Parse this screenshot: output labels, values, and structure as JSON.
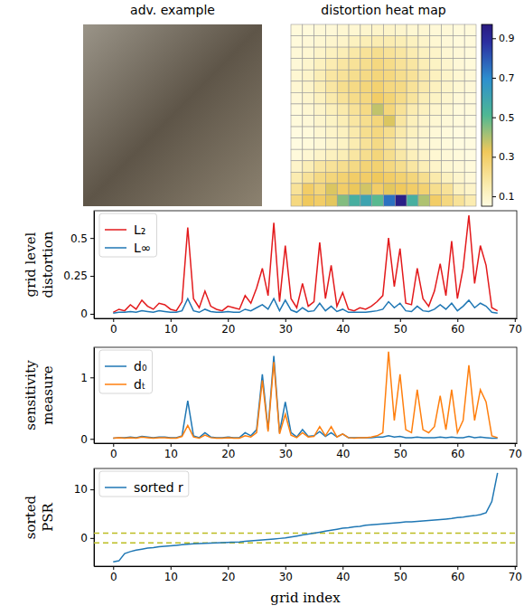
{
  "chart_data": [
    {
      "type": "image",
      "title": "adv. example"
    },
    {
      "type": "heatmap",
      "title": "distortion heat map",
      "values": [
        [
          0.06,
          0.06,
          0.07,
          0.07,
          0.08,
          0.08,
          0.09,
          0.1,
          0.1,
          0.09,
          0.08,
          0.08,
          0.07,
          0.07,
          0.06,
          0.06
        ],
        [
          0.06,
          0.07,
          0.08,
          0.09,
          0.1,
          0.12,
          0.14,
          0.15,
          0.15,
          0.14,
          0.12,
          0.1,
          0.08,
          0.07,
          0.06,
          0.06
        ],
        [
          0.07,
          0.08,
          0.1,
          0.12,
          0.14,
          0.17,
          0.2,
          0.22,
          0.2,
          0.18,
          0.15,
          0.12,
          0.1,
          0.08,
          0.07,
          0.06
        ],
        [
          0.07,
          0.09,
          0.12,
          0.15,
          0.18,
          0.2,
          0.22,
          0.25,
          0.23,
          0.2,
          0.18,
          0.14,
          0.11,
          0.09,
          0.07,
          0.06
        ],
        [
          0.08,
          0.1,
          0.14,
          0.18,
          0.2,
          0.22,
          0.24,
          0.26,
          0.25,
          0.22,
          0.2,
          0.16,
          0.12,
          0.1,
          0.08,
          0.07
        ],
        [
          0.08,
          0.1,
          0.14,
          0.18,
          0.22,
          0.24,
          0.26,
          0.28,
          0.25,
          0.24,
          0.2,
          0.16,
          0.12,
          0.1,
          0.08,
          0.07
        ],
        [
          0.07,
          0.09,
          0.12,
          0.16,
          0.2,
          0.23,
          0.25,
          0.3,
          0.27,
          0.23,
          0.19,
          0.14,
          0.11,
          0.09,
          0.07,
          0.06
        ],
        [
          0.06,
          0.08,
          0.1,
          0.13,
          0.16,
          0.2,
          0.24,
          0.38,
          0.26,
          0.2,
          0.15,
          0.12,
          0.09,
          0.08,
          0.06,
          0.06
        ],
        [
          0.06,
          0.07,
          0.09,
          0.11,
          0.14,
          0.18,
          0.22,
          0.26,
          0.35,
          0.18,
          0.13,
          0.1,
          0.08,
          0.07,
          0.06,
          0.05
        ],
        [
          0.05,
          0.06,
          0.08,
          0.1,
          0.12,
          0.16,
          0.22,
          0.25,
          0.22,
          0.16,
          0.12,
          0.09,
          0.07,
          0.06,
          0.05,
          0.05
        ],
        [
          0.05,
          0.06,
          0.07,
          0.09,
          0.11,
          0.15,
          0.2,
          0.24,
          0.2,
          0.14,
          0.1,
          0.08,
          0.07,
          0.06,
          0.05,
          0.05
        ],
        [
          0.06,
          0.08,
          0.1,
          0.12,
          0.14,
          0.18,
          0.22,
          0.26,
          0.22,
          0.17,
          0.13,
          0.1,
          0.08,
          0.07,
          0.06,
          0.05
        ],
        [
          0.1,
          0.14,
          0.18,
          0.2,
          0.22,
          0.24,
          0.27,
          0.28,
          0.25,
          0.22,
          0.18,
          0.14,
          0.1,
          0.08,
          0.07,
          0.06
        ],
        [
          0.15,
          0.2,
          0.24,
          0.26,
          0.28,
          0.3,
          0.3,
          0.32,
          0.3,
          0.28,
          0.26,
          0.22,
          0.16,
          0.12,
          0.09,
          0.07
        ],
        [
          0.2,
          0.3,
          0.26,
          0.35,
          0.3,
          0.33,
          0.36,
          0.3,
          0.34,
          0.32,
          0.3,
          0.28,
          0.22,
          0.2,
          0.12,
          0.1
        ],
        [
          0.25,
          0.32,
          0.3,
          0.34,
          0.45,
          0.55,
          0.6,
          0.5,
          0.75,
          0.95,
          0.55,
          0.4,
          0.3,
          0.25,
          0.2,
          0.15
        ]
      ],
      "colorbar_lim": [
        0.05,
        0.97
      ],
      "colorbar_ticks": [
        0.1,
        0.3,
        0.5,
        0.7,
        0.9
      ]
    },
    {
      "type": "line",
      "ylabel": [
        "grid level",
        "distortion"
      ],
      "legend": "upper left",
      "x": [
        0,
        1,
        2,
        3,
        4,
        5,
        6,
        7,
        8,
        9,
        10,
        11,
        12,
        13,
        14,
        15,
        16,
        17,
        18,
        19,
        20,
        21,
        22,
        23,
        24,
        25,
        26,
        27,
        28,
        29,
        30,
        31,
        32,
        33,
        34,
        35,
        36,
        37,
        38,
        39,
        40,
        41,
        42,
        43,
        44,
        45,
        46,
        47,
        48,
        49,
        50,
        51,
        52,
        53,
        54,
        55,
        56,
        57,
        58,
        59,
        60,
        61,
        62,
        63,
        64,
        65,
        66,
        67
      ],
      "xlim": [
        -3.35,
        70.35
      ],
      "xticks": [
        0,
        10,
        20,
        30,
        40,
        50,
        60,
        70
      ],
      "ylim": [
        -0.03,
        0.68
      ],
      "yticks": [
        0,
        0.25,
        0.5
      ],
      "series": [
        {
          "name": "L₂",
          "color": "#e31a1c",
          "values": [
            0.01,
            0.03,
            0.02,
            0.06,
            0.03,
            0.09,
            0.05,
            0.03,
            0.07,
            0.06,
            0.03,
            0.02,
            0.08,
            0.57,
            0.1,
            0.04,
            0.15,
            0.05,
            0.03,
            0.02,
            0.05,
            0.04,
            0.03,
            0.12,
            0.07,
            0.17,
            0.3,
            0.12,
            0.6,
            0.08,
            0.45,
            0.1,
            0.04,
            0.2,
            0.05,
            0.08,
            0.47,
            0.1,
            0.32,
            0.05,
            0.14,
            0.03,
            0.02,
            0.04,
            0.03,
            0.05,
            0.08,
            0.12,
            0.5,
            0.18,
            0.43,
            0.07,
            0.06,
            0.3,
            0.1,
            0.05,
            0.15,
            0.33,
            0.12,
            0.48,
            0.1,
            0.3,
            0.65,
            0.2,
            0.45,
            0.32,
            0.04,
            0.02
          ]
        },
        {
          "name": "L∞",
          "color": "#1f77b4",
          "values": [
            0.005,
            0.01,
            0.01,
            0.015,
            0.01,
            0.02,
            0.015,
            0.01,
            0.02,
            0.015,
            0.01,
            0.01,
            0.02,
            0.1,
            0.02,
            0.01,
            0.03,
            0.015,
            0.01,
            0.01,
            0.015,
            0.01,
            0.01,
            0.03,
            0.02,
            0.04,
            0.06,
            0.03,
            0.1,
            0.02,
            0.09,
            0.025,
            0.01,
            0.04,
            0.015,
            0.02,
            0.07,
            0.02,
            0.05,
            0.015,
            0.03,
            0.01,
            0.01,
            0.01,
            0.01,
            0.015,
            0.02,
            0.03,
            0.08,
            0.04,
            0.07,
            0.02,
            0.015,
            0.05,
            0.02,
            0.015,
            0.03,
            0.06,
            0.03,
            0.07,
            0.02,
            0.05,
            0.09,
            0.04,
            0.07,
            0.05,
            0.01,
            0.005
          ]
        }
      ]
    },
    {
      "type": "line",
      "ylabel": [
        "sensitivity",
        "measure"
      ],
      "legend": "upper left",
      "x": [
        0,
        1,
        2,
        3,
        4,
        5,
        6,
        7,
        8,
        9,
        10,
        11,
        12,
        13,
        14,
        15,
        16,
        17,
        18,
        19,
        20,
        21,
        22,
        23,
        24,
        25,
        26,
        27,
        28,
        29,
        30,
        31,
        32,
        33,
        34,
        35,
        36,
        37,
        38,
        39,
        40,
        41,
        42,
        43,
        44,
        45,
        46,
        47,
        48,
        49,
        50,
        51,
        52,
        53,
        54,
        55,
        56,
        57,
        58,
        59,
        60,
        61,
        62,
        63,
        64,
        65,
        66,
        67
      ],
      "xlim": [
        -3.35,
        70.35
      ],
      "xticks": [
        0,
        10,
        20,
        30,
        40,
        50,
        60,
        70
      ],
      "ylim": [
        -0.07,
        1.49
      ],
      "yticks": [
        0,
        1
      ],
      "series": [
        {
          "name": "d₀",
          "color": "#1f77b4",
          "values": [
            0.01,
            0.02,
            0.02,
            0.03,
            0.02,
            0.04,
            0.03,
            0.02,
            0.03,
            0.03,
            0.02,
            0.02,
            0.05,
            0.62,
            0.05,
            0.02,
            0.1,
            0.03,
            0.02,
            0.02,
            0.03,
            0.02,
            0.02,
            0.1,
            0.05,
            0.15,
            1.05,
            0.15,
            1.35,
            0.1,
            0.6,
            0.1,
            0.03,
            0.15,
            0.04,
            0.05,
            0.12,
            0.04,
            0.1,
            0.03,
            0.08,
            0.02,
            0.02,
            0.02,
            0.02,
            0.02,
            0.03,
            0.03,
            0.05,
            0.03,
            0.04,
            0.02,
            0.02,
            0.03,
            0.02,
            0.02,
            0.02,
            0.03,
            0.02,
            0.03,
            0.02,
            0.02,
            0.04,
            0.02,
            0.03,
            0.02,
            0.01,
            0.01
          ]
        },
        {
          "name": "dₜ",
          "color": "#ff7f0e",
          "values": [
            0.01,
            0.02,
            0.01,
            0.02,
            0.01,
            0.03,
            0.02,
            0.01,
            0.02,
            0.02,
            0.01,
            0.01,
            0.04,
            0.22,
            0.03,
            0.01,
            0.06,
            0.02,
            0.01,
            0.01,
            0.02,
            0.01,
            0.01,
            0.05,
            0.03,
            0.1,
            0.95,
            0.12,
            1.25,
            0.08,
            0.4,
            0.06,
            0.02,
            0.1,
            0.03,
            0.04,
            0.2,
            0.05,
            0.2,
            0.03,
            0.08,
            0.02,
            0.01,
            0.02,
            0.02,
            0.03,
            0.05,
            0.1,
            1.42,
            0.3,
            1.05,
            0.15,
            0.1,
            0.8,
            0.15,
            0.1,
            0.2,
            0.7,
            0.15,
            0.8,
            0.1,
            0.3,
            1.2,
            0.3,
            0.8,
            0.6,
            0.05,
            0.02
          ]
        }
      ]
    },
    {
      "type": "line",
      "ylabel": [
        "sorted",
        "PSR"
      ],
      "xlabel": "grid index",
      "legend": "upper left",
      "x": [
        0,
        1,
        2,
        3,
        4,
        5,
        6,
        7,
        8,
        9,
        10,
        11,
        12,
        13,
        14,
        15,
        16,
        17,
        18,
        19,
        20,
        21,
        22,
        23,
        24,
        25,
        26,
        27,
        28,
        29,
        30,
        31,
        32,
        33,
        34,
        35,
        36,
        37,
        38,
        39,
        40,
        41,
        42,
        43,
        44,
        45,
        46,
        47,
        48,
        49,
        50,
        51,
        52,
        53,
        54,
        55,
        56,
        57,
        58,
        59,
        60,
        61,
        62,
        63,
        64,
        65,
        66,
        67
      ],
      "xlim": [
        -3.35,
        70.35
      ],
      "xticks": [
        0,
        10,
        20,
        30,
        40,
        50,
        60,
        70
      ],
      "ylim": [
        -5.8,
        14.3
      ],
      "yticks": [
        0,
        10
      ],
      "reference_lines": [
        1,
        -1
      ],
      "reference_color": "#bcbd22",
      "series": [
        {
          "name": "sorted r",
          "color": "#1f77b4",
          "values": [
            -4.9,
            -4.7,
            -3.2,
            -2.8,
            -2.5,
            -2.3,
            -2.1,
            -2.0,
            -1.8,
            -1.7,
            -1.6,
            -1.5,
            -1.4,
            -1.3,
            -1.2,
            -1.15,
            -1.1,
            -1.05,
            -1.0,
            -0.95,
            -0.9,
            -0.85,
            -0.8,
            -0.7,
            -0.6,
            -0.5,
            -0.4,
            -0.3,
            -0.2,
            -0.1,
            0,
            0.2,
            0.4,
            0.6,
            0.8,
            1.0,
            1.2,
            1.4,
            1.6,
            1.8,
            2.0,
            2.1,
            2.3,
            2.4,
            2.6,
            2.7,
            2.8,
            2.9,
            3.0,
            3.1,
            3.2,
            3.3,
            3.3,
            3.4,
            3.5,
            3.6,
            3.7,
            3.8,
            3.9,
            4.0,
            4.2,
            4.3,
            4.5,
            4.6,
            4.8,
            5.2,
            7.5,
            13.4
          ]
        }
      ]
    }
  ]
}
